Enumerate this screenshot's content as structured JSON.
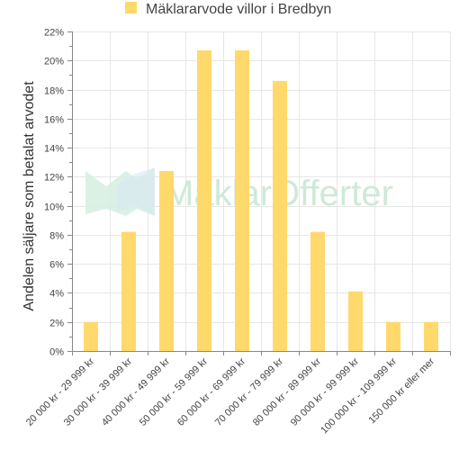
{
  "chart_data": {
    "type": "bar",
    "title": "",
    "xlabel": "",
    "ylabel": "Andelen säljare som betalat arvodet",
    "ylim": [
      0,
      22
    ],
    "y_tick_step": 2,
    "y_unit_suffix": "%",
    "grid": true,
    "legend_position": "top",
    "series": [
      {
        "name": "Mäklararvode villor i Bredbyn",
        "color": "#ffd96b",
        "values": [
          2,
          8.2,
          12.4,
          20.7,
          20.7,
          18.6,
          8.2,
          4.1,
          2,
          2
        ]
      }
    ],
    "categories": [
      "20 000 kr - 29 999 kr",
      "30 000 kr - 39 999 kr",
      "40 000 kr - 49 999 kr",
      "50 000 kr - 59 999 kr",
      "60 000 kr - 69 999 kr",
      "70 000 kr - 79 999 kr",
      "80 000 kr - 89 999 kr",
      "90 000 kr - 99 999 kr",
      "100 000 kr - 109 999 kr",
      "150 000 kr eller mer"
    ]
  },
  "watermark": {
    "text": "MäklarOfferter",
    "colors": [
      "#d6efe0",
      "#d9e7f2"
    ]
  }
}
